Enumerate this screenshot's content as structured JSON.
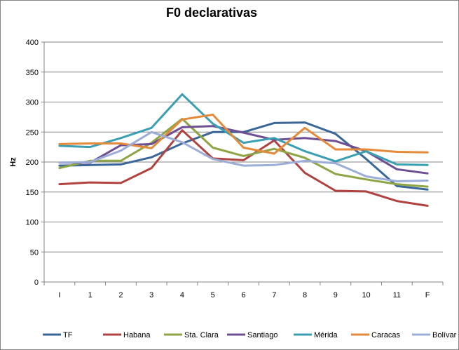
{
  "chart_data": {
    "type": "line",
    "title": "F0 declarativas",
    "xlabel": "",
    "ylabel": "Hz",
    "ylim": [
      0,
      400
    ],
    "yticks": [
      0,
      50,
      100,
      150,
      200,
      250,
      300,
      350,
      400
    ],
    "grid": true,
    "legend": "bottom",
    "categories": [
      "I",
      "1",
      "2",
      "3",
      "4",
      "5",
      "6",
      "7",
      "8",
      "9",
      "10",
      "11",
      "F"
    ],
    "series": [
      {
        "name": "TF",
        "color": "#3a6698",
        "values": [
          194,
          195,
          196,
          208,
          231,
          250,
          250,
          265,
          266,
          247,
          205,
          160,
          154
        ]
      },
      {
        "name": "Habana",
        "color": "#b04240",
        "values": [
          163,
          166,
          165,
          190,
          253,
          206,
          203,
          236,
          182,
          152,
          151,
          135,
          127
        ]
      },
      {
        "name": "Sta. Clara",
        "color": "#8da545",
        "values": [
          190,
          202,
          202,
          232,
          272,
          224,
          210,
          222,
          207,
          180,
          171,
          163,
          159
        ]
      },
      {
        "name": "Santiago",
        "color": "#6e4f93",
        "values": [
          199,
          199,
          228,
          230,
          258,
          260,
          249,
          237,
          240,
          235,
          218,
          188,
          181
        ]
      },
      {
        "name": "Mérida",
        "color": "#3a9fb2",
        "values": [
          227,
          225,
          240,
          257,
          313,
          264,
          232,
          240,
          218,
          201,
          218,
          196,
          195
        ]
      },
      {
        "name": "Caracas",
        "color": "#e48a3a",
        "values": [
          230,
          231,
          231,
          223,
          271,
          279,
          224,
          214,
          257,
          221,
          221,
          217,
          216
        ]
      },
      {
        "name": "Bolívar",
        "color": "#9cadd8",
        "values": [
          199,
          200,
          219,
          250,
          233,
          205,
          194,
          195,
          202,
          198,
          176,
          168,
          169
        ]
      }
    ]
  }
}
